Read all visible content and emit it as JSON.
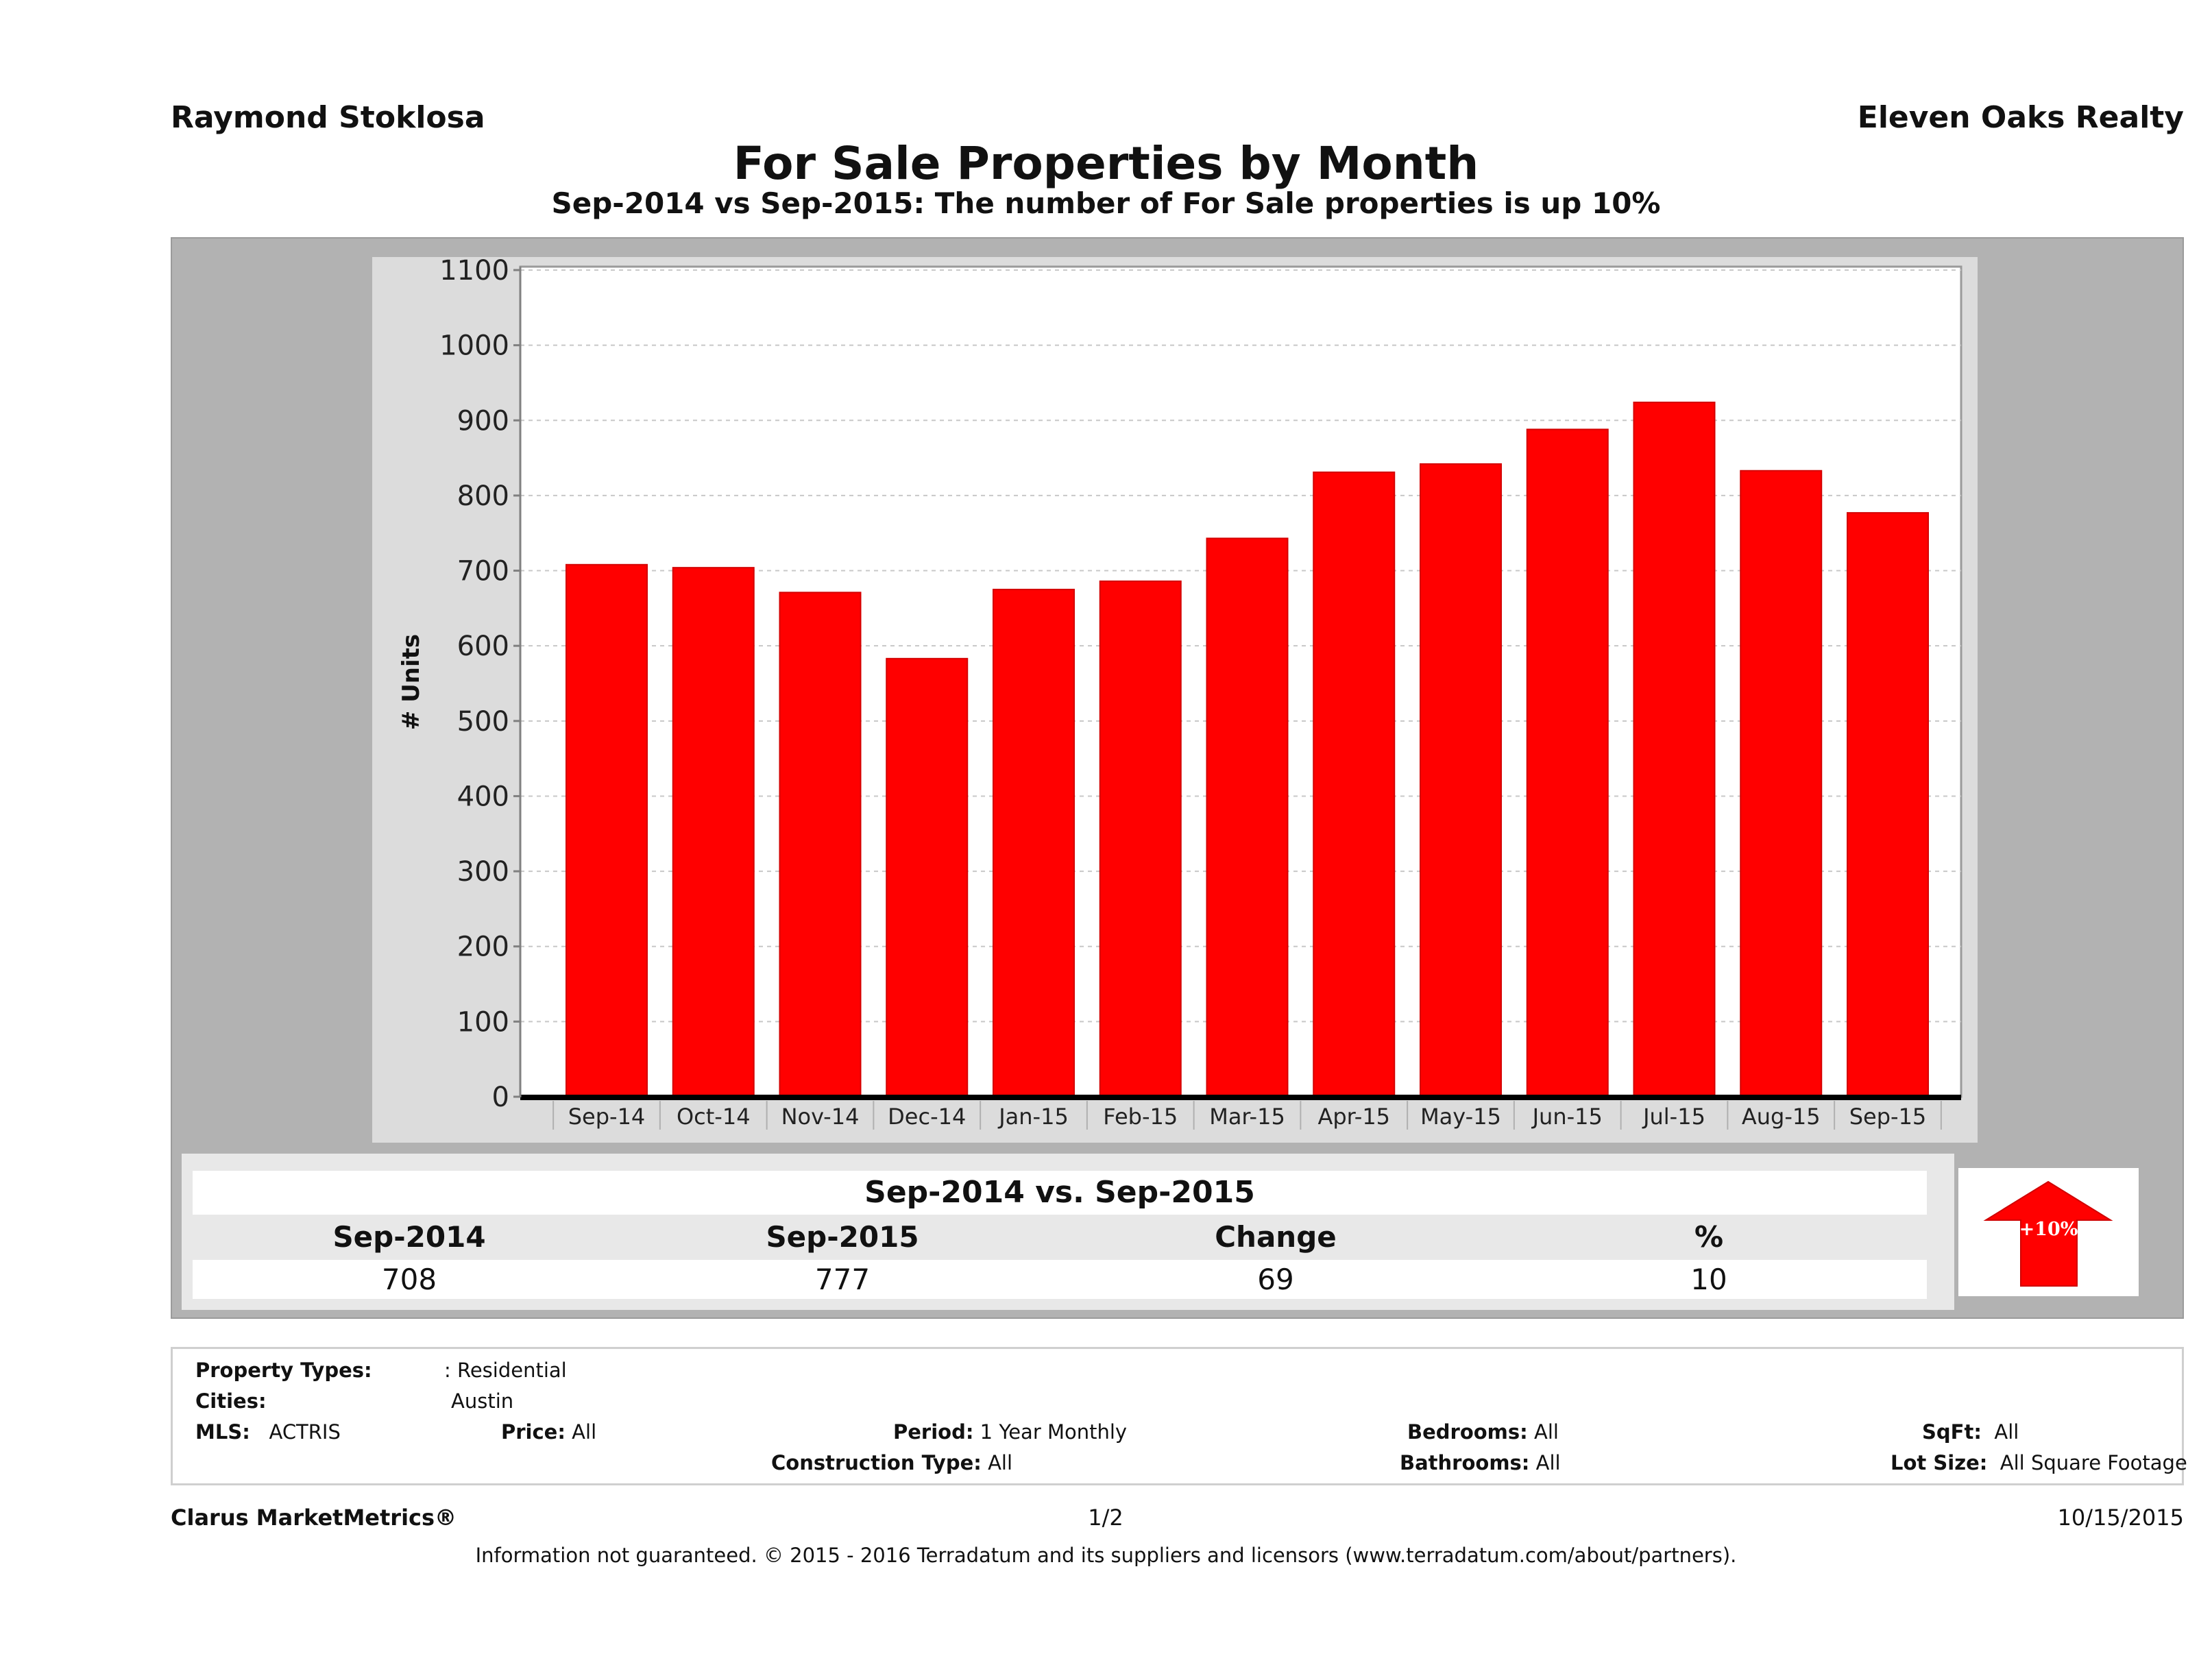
{
  "header": {
    "agent_name": "Raymond Stoklosa",
    "company_name": "Eleven Oaks Realty",
    "title": "For Sale Properties by Month",
    "subtitle": "Sep-2014 vs Sep-2015: The number of For Sale  properties is up 10%"
  },
  "colors": {
    "bar": "#ff0000",
    "panel_outer": "#b2b2b2",
    "panel_chart": "#dcdcdc",
    "plot_bg": "#ffffff",
    "arrow": "#ff0000"
  },
  "chart_data": {
    "type": "bar",
    "title": "For Sale Properties by Month",
    "xlabel": "",
    "ylabel": "# Units",
    "ylim": [
      0,
      1100
    ],
    "yticks": [
      0,
      100,
      200,
      300,
      400,
      500,
      600,
      700,
      800,
      900,
      1000,
      1100
    ],
    "grid": true,
    "legend": "none",
    "categories": [
      "Sep-14",
      "Oct-14",
      "Nov-14",
      "Dec-14",
      "Jan-15",
      "Feb-15",
      "Mar-15",
      "Apr-15",
      "May-15",
      "Jun-15",
      "Jul-15",
      "Aug-15",
      "Sep-15"
    ],
    "values": [
      708,
      704,
      671,
      583,
      675,
      686,
      743,
      831,
      842,
      888,
      924,
      833,
      777
    ]
  },
  "comparison": {
    "title": "Sep-2014 vs. Sep-2015",
    "headers": [
      "Sep-2014",
      "Sep-2015",
      "Change",
      "%"
    ],
    "values": [
      "708",
      "777",
      "69",
      "10"
    ],
    "arrow_label": "+10%",
    "arrow_direction": "up"
  },
  "criteria": {
    "property_types_label": "Property Types:",
    "property_types_value": ": Residential",
    "cities_label": "Cities:",
    "cities_value": "Austin",
    "mls_label": "MLS:",
    "mls_value": "ACTRIS",
    "price_label": "Price:",
    "price_value": "All",
    "period_label": "Period:",
    "period_value": "1 Year Monthly",
    "construction_label": "Construction Type:",
    "construction_value": "All",
    "bedrooms_label": "Bedrooms:",
    "bedrooms_value": "All",
    "bathrooms_label": "Bathrooms:",
    "bathrooms_value": "All",
    "sqft_label": "SqFt:",
    "sqft_value": "All",
    "lotsize_label": "Lot Size:",
    "lotsize_value": "All Square Footage"
  },
  "footer": {
    "brand": "Clarus MarketMetrics®",
    "page": "1/2",
    "date": "10/15/2015",
    "disclaimer": "Information not guaranteed. © 2015 - 2016 Terradatum and its suppliers and licensors (www.terradatum.com/about/partners)."
  }
}
